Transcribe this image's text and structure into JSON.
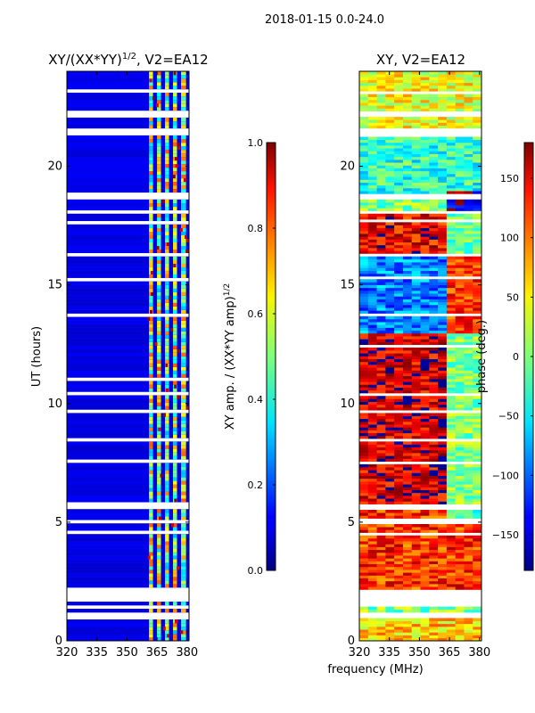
{
  "figure": {
    "suptitle": "2018-01-15 0.0-24.0",
    "xlabel": "frequency (MHz)"
  },
  "chart_data": [
    {
      "type": "heatmap",
      "title_main": "XY/(XX*YY)",
      "title_exp": "1/2",
      "title_rest": ", V2=EA12",
      "ylabel": "UT (hours)",
      "xlim": [
        320,
        381
      ],
      "ylim": [
        0,
        24
      ],
      "xticks": [
        320,
        335,
        350,
        365,
        380
      ],
      "yticks": [
        0,
        5,
        10,
        15,
        20
      ],
      "colormap": "jet",
      "colorbar": {
        "label_main": "XY amp. / (XX*YY amp)",
        "label_exp": "1/2",
        "range": [
          0.0,
          1.0
        ],
        "ticks": [
          "0.0",
          "0.2",
          "0.4",
          "0.6",
          "0.8",
          "1.0"
        ]
      },
      "features": {
        "background_level": 0.08,
        "bright_channel_bands_mhz": [
          [
            361,
            363
          ],
          [
            365,
            367
          ],
          [
            369,
            371
          ],
          [
            373,
            375
          ],
          [
            377,
            379.5
          ]
        ],
        "band_level": 0.55
      }
    },
    {
      "type": "heatmap",
      "title_main": "XY, V2=EA12",
      "xlim": [
        320,
        381
      ],
      "ylim": [
        0,
        24
      ],
      "xticks": [
        320,
        335,
        350,
        365,
        380
      ],
      "yticks": [
        0,
        5,
        10,
        15,
        20
      ],
      "colormap": "jet",
      "colorbar": {
        "label": "phase (deg.)",
        "range": [
          -180,
          180
        ],
        "ticks": [
          "−150",
          "−100",
          "−50",
          "0",
          "50",
          "100",
          "150"
        ]
      },
      "features": {
        "segments_ut_hours": [
          {
            "from": 0.0,
            "to": 1.0,
            "phase_deg": 60
          },
          {
            "from": 2.2,
            "to": 5.6,
            "phase_deg": 120
          },
          {
            "from": 5.8,
            "to": 13.0,
            "phase_deg": 150
          },
          {
            "from": 13.0,
            "to": 16.3,
            "phase_deg": -90
          },
          {
            "from": 16.3,
            "to": 18.0,
            "phase_deg": 140
          },
          {
            "from": 18.8,
            "to": 21.2,
            "phase_deg": -30
          },
          {
            "from": 21.6,
            "to": 24.0,
            "phase_deg": 40
          }
        ]
      }
    }
  ],
  "gap_rows_ut_hours": [
    [
      0.95,
      1.2
    ],
    [
      1.4,
      1.5
    ],
    [
      1.6,
      2.2
    ],
    [
      4.45,
      4.6
    ],
    [
      4.9,
      5.1
    ],
    [
      5.5,
      5.8
    ],
    [
      7.5,
      7.6
    ],
    [
      8.4,
      8.5
    ],
    [
      9.6,
      9.7
    ],
    [
      10.35,
      10.45
    ],
    [
      11.0,
      11.1
    ],
    [
      12.4,
      12.5
    ],
    [
      13.7,
      13.8
    ],
    [
      15.2,
      15.3
    ],
    [
      16.25,
      16.35
    ],
    [
      17.6,
      17.7
    ],
    [
      18.0,
      18.15
    ],
    [
      18.55,
      18.85
    ],
    [
      21.3,
      21.6
    ],
    [
      22.1,
      22.3
    ],
    [
      23.1,
      23.2
    ]
  ]
}
